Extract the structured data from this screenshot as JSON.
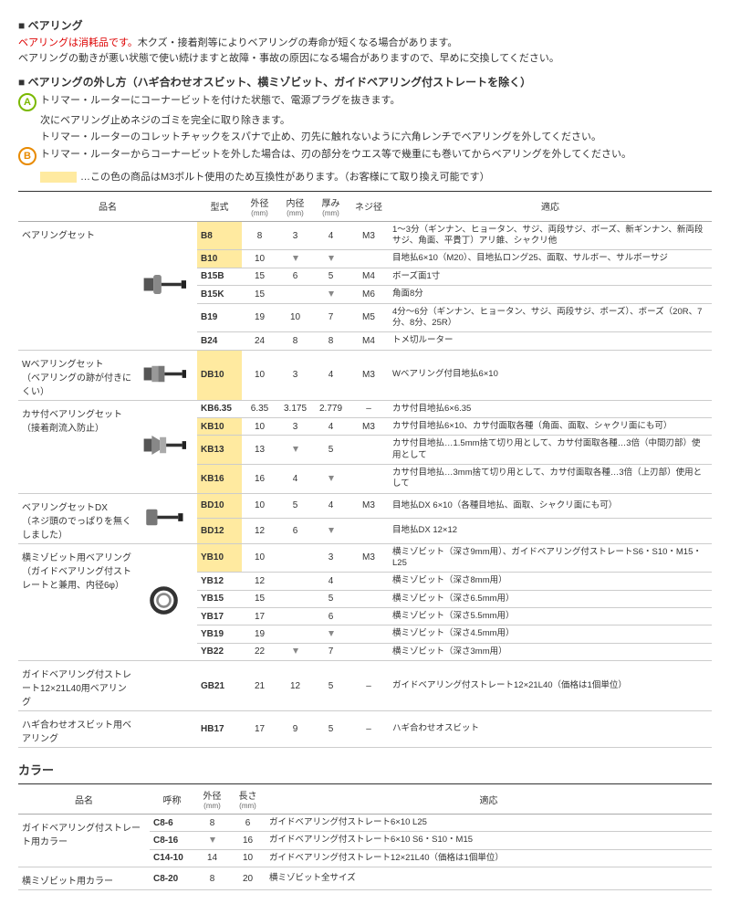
{
  "header": {
    "title": "ベアリング",
    "warning": "ベアリングは消耗品です。",
    "warning_cont": "木クズ・接着剤等によりベアリングの寿命が短くなる場合があります。",
    "line2": "ベアリングの動きが悪い状態で使い続けますと故障・事故の原因になる場合がありますので、早めに交換してください。"
  },
  "method": {
    "title": "ベアリングの外し方（ハギ合わせオスビット、横ミゾビット、ガイドベアリング付ストレートを除く）",
    "stepA1": "トリマー・ルーターにコーナービットを付けた状態で、電源プラグを抜きます。",
    "stepA2": "次にベアリング止めネジのゴミを完全に取り除きます。",
    "stepA3": "トリマー・ルーターのコレットチャックをスパナで止め、刃先に触れないように六角レンチでベアリングを外してください。",
    "stepB1": "トリマー・ルーターからコーナービットを外した場合は、刃の部分をウエス等で幾重にも巻いてからベアリングを外してください。",
    "legend": "…この色の商品はM3ボルト使用のため互換性があります。（お客様にて取り換え可能です）"
  },
  "table1": {
    "headers": {
      "name": "品名",
      "model": "型式",
      "outer": "外径",
      "inner": "内径",
      "thick": "厚み",
      "unit": "(mm)",
      "screw": "ネジ径",
      "app": "適応"
    },
    "groups": [
      {
        "name": "ベアリングセット",
        "sub": "",
        "img": "bearing1",
        "rows": [
          {
            "model": "B8",
            "hl": true,
            "d": [
              "8",
              "3",
              "4"
            ],
            "screw": "M3",
            "app": "1～3分（ギンナン、ヒョータン、サジ、両段サジ、ボーズ、新ギンナン、新両段サジ、角面、平貴丁）アリ錐、シャクリ他"
          },
          {
            "model": "B10",
            "hl": true,
            "d": [
              "10",
              "↓",
              "↓"
            ],
            "screw": "",
            "app": "目地払6×10（M20）、目地払ロング25、面取、サルボー、サルボーサジ"
          },
          {
            "model": "B15B",
            "hl": false,
            "d": [
              "15",
              "6",
              "5"
            ],
            "screw": "M4",
            "app": "ボーズ面1寸"
          },
          {
            "model": "B15K",
            "hl": false,
            "d": [
              "15",
              "",
              "↓"
            ],
            "screw": "M6",
            "app": "角面8分"
          },
          {
            "model": "B19",
            "hl": false,
            "d": [
              "19",
              "10",
              "7"
            ],
            "screw": "M5",
            "app": "4分～6分（ギンナン、ヒョータン、サジ、両段サジ、ボーズ）、ボーズ（20R、7分、8分、25R）"
          },
          {
            "model": "B24",
            "hl": false,
            "d": [
              "24",
              "8",
              "8"
            ],
            "screw": "M4",
            "app": "トメ切ルーター"
          }
        ]
      },
      {
        "name": "Wベアリングセット",
        "sub": "（ベアリングの跡が付きにくい）",
        "img": "bearing2",
        "rows": [
          {
            "model": "DB10",
            "hl": true,
            "d": [
              "10",
              "3",
              "4"
            ],
            "screw": "M3",
            "app": "Wベアリング付目地払6×10"
          }
        ]
      },
      {
        "name": "カサ付ベアリングセット",
        "sub": "（接着剤流入防止）",
        "img": "bearing3",
        "rows": [
          {
            "model": "KB6.35",
            "hl": false,
            "d": [
              "6.35",
              "3.175",
              "2.779"
            ],
            "screw": "–",
            "app": "カサ付目地払6×6.35"
          },
          {
            "model": "KB10",
            "hl": true,
            "d": [
              "10",
              "3",
              "4"
            ],
            "screw": "M3",
            "app": "カサ付目地払6×10、カサ付面取各種（角面、面取、シャクリ面にも可）"
          },
          {
            "model": "KB13",
            "hl": true,
            "d": [
              "13",
              "↓",
              "5"
            ],
            "screw": "",
            "app": "カサ付目地払…1.5mm捨て切り用として、カサ付面取各種…3倍（中間刃部）使用として"
          },
          {
            "model": "KB16",
            "hl": true,
            "d": [
              "16",
              "4",
              "↓"
            ],
            "screw": "",
            "app": "カサ付目地払…3mm捨て切り用として、カサ付面取各種…3倍（上刃部）使用として"
          }
        ]
      },
      {
        "name": "ベアリングセットDX",
        "sub": "（ネジ頭のでっぱりを無くしました）",
        "img": "bearing4",
        "rows": [
          {
            "model": "BD10",
            "hl": true,
            "d": [
              "10",
              "5",
              "4"
            ],
            "screw": "M3",
            "app": "目地払DX 6×10（各種目地払、面取、シャクリ面にも可）"
          },
          {
            "model": "BD12",
            "hl": true,
            "d": [
              "12",
              "6",
              "↓"
            ],
            "screw": "",
            "app": "目地払DX 12×12"
          }
        ]
      },
      {
        "name": "横ミゾビット用ベアリング",
        "sub": "（ガイドベアリング付ストレートと兼用、内径6φ）",
        "img": "bearing5",
        "rows": [
          {
            "model": "YB10",
            "hl": true,
            "d": [
              "10",
              "",
              "3"
            ],
            "screw": "M3",
            "app": "横ミゾビット（深さ9mm用）、ガイドベアリング付ストレートS6・S10・M15・L25"
          },
          {
            "model": "YB12",
            "hl": false,
            "d": [
              "12",
              "",
              "4"
            ],
            "screw": "",
            "app": "横ミゾビット（深さ8mm用）"
          },
          {
            "model": "YB15",
            "hl": false,
            "d": [
              "15",
              "",
              "5"
            ],
            "screw": "",
            "app": "横ミゾビット（深さ6.5mm用）"
          },
          {
            "model": "YB17",
            "hl": false,
            "d": [
              "17",
              "",
              "6"
            ],
            "screw": "",
            "app": "横ミゾビット（深さ5.5mm用）"
          },
          {
            "model": "YB19",
            "hl": false,
            "d": [
              "19",
              "",
              "↓"
            ],
            "screw": "",
            "app": "横ミゾビット（深さ4.5mm用）"
          },
          {
            "model": "YB22",
            "hl": false,
            "d": [
              "22",
              "↓",
              "7"
            ],
            "screw": "",
            "app": "横ミゾビット（深さ3mm用）"
          }
        ]
      },
      {
        "name": "ガイドベアリング付ストレート12×21L40用ベアリング",
        "sub": "",
        "img": "",
        "rows": [
          {
            "model": "GB21",
            "hl": false,
            "d": [
              "21",
              "12",
              "5"
            ],
            "screw": "–",
            "app": "ガイドベアリング付ストレート12×21L40（価格は1個単位）"
          }
        ]
      },
      {
        "name": "ハギ合わせオスビット用ベアリング",
        "sub": "",
        "img": "",
        "rows": [
          {
            "model": "HB17",
            "hl": false,
            "d": [
              "17",
              "9",
              "5"
            ],
            "screw": "–",
            "app": "ハギ合わせオスビット"
          }
        ]
      }
    ]
  },
  "collar": {
    "title": "カラー",
    "headers": {
      "name": "品名",
      "model": "呼称",
      "outer": "外径",
      "len": "長さ",
      "app": "適応"
    },
    "groups": [
      {
        "name": "ガイドベアリング付ストレート用カラー",
        "rows": [
          {
            "model": "C8-6",
            "d": [
              "8",
              "6"
            ],
            "app": "ガイドベアリング付ストレート6×10 L25"
          },
          {
            "model": "C8-16",
            "d": [
              "↓",
              "16"
            ],
            "app": "ガイドベアリング付ストレート6×10 S6・S10・M15"
          },
          {
            "model": "C14-10",
            "d": [
              "14",
              "10"
            ],
            "app": "ガイドベアリング付ストレート12×21L40（価格は1個単位）"
          }
        ]
      },
      {
        "name": "横ミゾビット用カラー",
        "rows": [
          {
            "model": "C8-20",
            "d": [
              "8",
              "20"
            ],
            "app": "横ミゾビット全サイズ"
          }
        ]
      }
    ]
  }
}
